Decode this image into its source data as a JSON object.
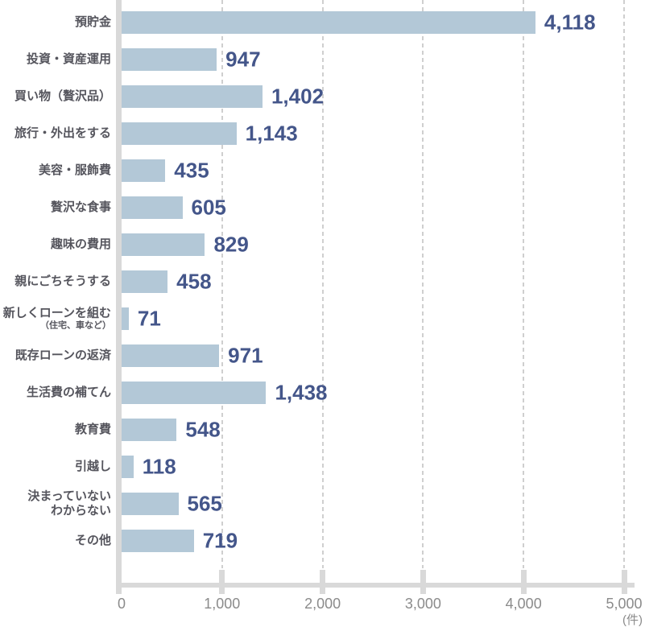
{
  "chart_data": {
    "type": "bar",
    "orientation": "horizontal",
    "title": "",
    "unit_label": "(件)",
    "xlabel": "",
    "ylabel": "",
    "xlim": [
      0,
      5000
    ],
    "grid": "vertical-dashed",
    "legend": "none",
    "x_ticks": [
      {
        "value": 0,
        "label": "0"
      },
      {
        "value": 1000,
        "label": "1,000"
      },
      {
        "value": 2000,
        "label": "2,000"
      },
      {
        "value": 3000,
        "label": "3,000"
      },
      {
        "value": 4000,
        "label": "4,000"
      },
      {
        "value": 5000,
        "label": "5,000"
      }
    ],
    "rows": [
      {
        "label": "預貯金",
        "value": 4118,
        "value_label": "4,118"
      },
      {
        "label": "投資・資産運用",
        "value": 947,
        "value_label": "947"
      },
      {
        "label": "買い物（贅沢品）",
        "value": 1402,
        "value_label": "1,402"
      },
      {
        "label": "旅行・外出をする",
        "value": 1143,
        "value_label": "1,143"
      },
      {
        "label": "美容・服飾費",
        "value": 435,
        "value_label": "435"
      },
      {
        "label": "贅沢な食事",
        "value": 605,
        "value_label": "605"
      },
      {
        "label": "趣味の費用",
        "value": 829,
        "value_label": "829"
      },
      {
        "label": "親にごちそうする",
        "value": 458,
        "value_label": "458"
      },
      {
        "label": "新しくローンを組む",
        "sublabel": "（住宅、車など）",
        "value": 71,
        "value_label": "71"
      },
      {
        "label": "既存ローンの返済",
        "value": 971,
        "value_label": "971"
      },
      {
        "label": "生活費の補てん",
        "value": 1438,
        "value_label": "1,438"
      },
      {
        "label": "教育費",
        "value": 548,
        "value_label": "548"
      },
      {
        "label": "引越し",
        "value": 118,
        "value_label": "118"
      },
      {
        "label": "決まっていない",
        "label_line2": "わからない",
        "value": 565,
        "value_label": "565"
      },
      {
        "label": "その他",
        "value": 719,
        "value_label": "719"
      }
    ],
    "colors": {
      "bar": "#b3c8d7",
      "value_text": "#44568a",
      "category_text": "#55555d",
      "tick_text": "#8b8b8b",
      "axis": "#d9d9d9",
      "gridline": "#cfcfcf",
      "background": "#ffffff"
    }
  }
}
